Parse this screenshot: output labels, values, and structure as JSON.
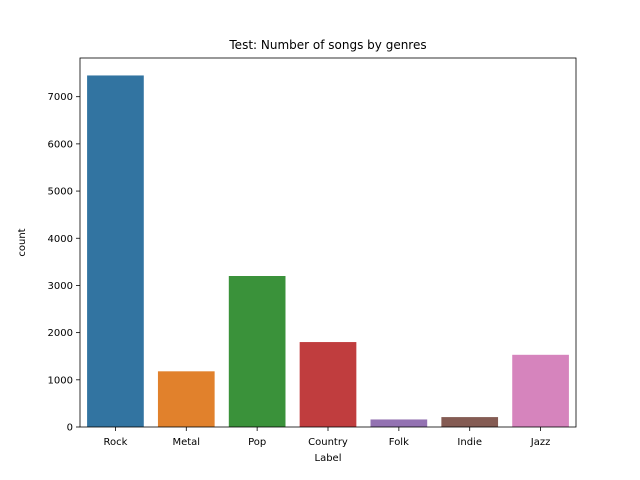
{
  "chart_data": {
    "type": "bar",
    "title": "Test: Number of songs by genres",
    "xlabel": "Label",
    "ylabel": "count",
    "categories": [
      "Rock",
      "Metal",
      "Pop",
      "Country",
      "Folk",
      "Indie",
      "Jazz"
    ],
    "values": [
      7450,
      1180,
      3200,
      1800,
      160,
      210,
      1530
    ],
    "colors": [
      "#3274a1",
      "#e1812c",
      "#3a923a",
      "#c03d3e",
      "#9372b2",
      "#845b53",
      "#d684bd"
    ],
    "ylim": [
      0,
      7820
    ],
    "yticks": [
      0,
      1000,
      2000,
      3000,
      4000,
      5000,
      6000,
      7000
    ],
    "ytick_labels": [
      "0",
      "1000",
      "2000",
      "3000",
      "4000",
      "5000",
      "6000",
      "7000"
    ],
    "grid": false,
    "legend": "none"
  }
}
